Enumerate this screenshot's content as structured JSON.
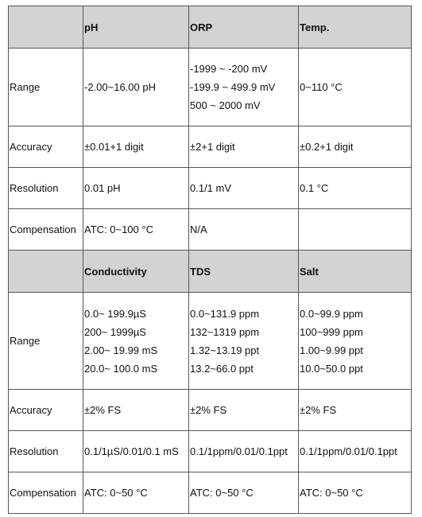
{
  "table1": {
    "headers": [
      "",
      "pH",
      "ORP",
      "Temp."
    ],
    "rows": [
      {
        "label": "Range",
        "cells": [
          [
            "-2.00~16.00 pH"
          ],
          [
            "-1999 ~ -200 mV",
            "-199.9 ~ 499.9 mV",
            "500 ~ 2000 mV"
          ],
          [
            "0~110 °C"
          ]
        ]
      },
      {
        "label": "Accuracy",
        "cells": [
          [
            "±0.01+1 digit"
          ],
          [
            "±2+1 digit"
          ],
          [
            "±0.2+1 digit"
          ]
        ]
      },
      {
        "label": "Resolution",
        "cells": [
          [
            "0.01 pH"
          ],
          [
            "0.1/1 mV"
          ],
          [
            "0.1 °C"
          ]
        ]
      },
      {
        "label": "Compensation",
        "cells": [
          [
            "ATC: 0~100 °C"
          ],
          [
            "N/A"
          ],
          [
            ""
          ]
        ]
      }
    ]
  },
  "table2": {
    "headers": [
      "",
      "Conductivity",
      "TDS",
      "Salt"
    ],
    "rows": [
      {
        "label": "Range",
        "cells": [
          [
            "0.0~ 199.9µS",
            "200~ 1999µS",
            "2.00~ 19.99 mS",
            "20.0~ 100.0 mS"
          ],
          [
            "0.0~131.9 ppm",
            "132~1319 ppm",
            "1.32~13.19 ppt",
            "13.2~66.0 ppt"
          ],
          [
            "0.0~99.9 ppm",
            "100~999 ppm",
            "1.00~9.99 ppt",
            "10.0~50.0 ppt"
          ]
        ]
      },
      {
        "label": "Accuracy",
        "cells": [
          [
            "±2% FS"
          ],
          [
            "±2% FS"
          ],
          [
            "±2% FS"
          ]
        ]
      },
      {
        "label": "Resolution",
        "cells": [
          [
            "0.1/1µS/0.01/0.1 mS"
          ],
          [
            "0.1/1ppm/0.01/0.1ppt"
          ],
          [
            "0.1/1ppm/0.01/0.1ppt"
          ]
        ]
      },
      {
        "label": "Compensation",
        "cells": [
          [
            "ATC: 0~50 °C"
          ],
          [
            "ATC: 0~50 °C"
          ],
          [
            "ATC: 0~50 °C"
          ]
        ]
      }
    ]
  }
}
